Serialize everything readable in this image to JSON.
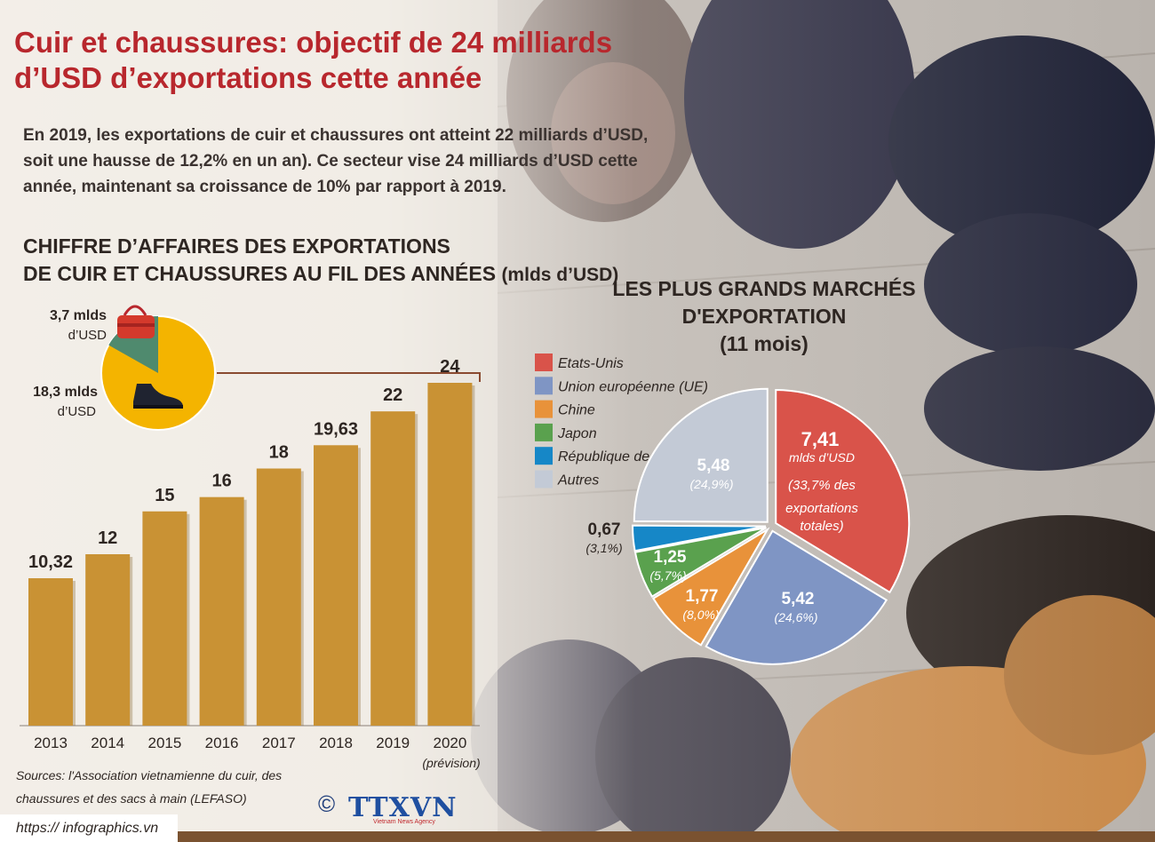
{
  "title": "Cuir et chaussures: objectif de 24 milliards d’USD d’exportations cette année",
  "intro": "En 2019, les exportations de cuir et chaussures ont atteint 22 milliards d’USD, soit  une hausse de 12,2% en un an). Ce secteur vise 24 milliards d’USD cette année, maintenant sa croissance de 10%  par rapport à 2019.",
  "bar_section": {
    "title_line1": "CHIFFRE D’AFFAIRES DES EXPORTATIONS",
    "title_line2": "DE CUIR ET CHAUSSURES AU FIL DES ANNÉES",
    "unit": "(mlds d’USD)",
    "forecast_note": "(prévision)"
  },
  "mini_pie": {
    "bags_value": "3,7 mlds",
    "bags_unit": "d’USD",
    "shoes_value": "18,3 mlds",
    "shoes_unit": "d’USD",
    "bags_color": "#4f8a6e",
    "shoes_color": "#f4b400"
  },
  "pie_section": {
    "title_line1": "LES PLUS GRANDS MARCHÉS",
    "title_line2": "D'EXPORTATION",
    "title_line3": "(11 mois)",
    "us_unit": "mlds d’USD",
    "us_note_line1": "(33,7% des",
    "us_note_line2": "exportations",
    "us_note_line3": "totales)"
  },
  "chart_data": [
    {
      "type": "bar",
      "categories": [
        "2013",
        "2014",
        "2015",
        "2016",
        "2017",
        "2018",
        "2019",
        "2020"
      ],
      "values": [
        10.32,
        12,
        15,
        16,
        18,
        19.63,
        22,
        24
      ],
      "value_labels": [
        "10,32",
        "12",
        "15",
        "16",
        "18",
        "19,63",
        "22",
        "24"
      ],
      "title": "CHIFFRE D’AFFAIRES DES EXPORTATIONS DE CUIR ET CHAUSSURES AU FIL DES ANNÉES (mlds d’USD)",
      "ylim": [
        0,
        24
      ],
      "color": "#c99234"
    },
    {
      "type": "pie",
      "slices": [
        {
          "name": "Etats-Unis",
          "value": 7.41,
          "label": "7,41",
          "percent": "(33,7% des",
          "color": "#d9534a"
        },
        {
          "name": "Union européenne (UE)",
          "value": 5.42,
          "label": "5,42",
          "percent": "(24,6%)",
          "color": "#7f95c4"
        },
        {
          "name": "Chine",
          "value": 1.77,
          "label": "1,77",
          "percent": "(8,0%)",
          "color": "#e8923a"
        },
        {
          "name": "Japon",
          "value": 1.25,
          "label": "1,25",
          "percent": "(5,7%)",
          "color": "#5aa14e"
        },
        {
          "name": "République de Corée",
          "value": 0.67,
          "label": "0,67",
          "percent": "(3,1%)",
          "color": "#1687c7"
        },
        {
          "name": "Autres",
          "value": 5.48,
          "label": "5,48",
          "percent": "(24,9%)",
          "color": "#c3cad6"
        }
      ],
      "title": "LES PLUS GRANDS MARCHÉS D'EXPORTATION (11 mois)"
    }
  ],
  "sources_line1": "Sources: l'Association vietnamienne du cuir, des",
  "sources_line2": "chaussures et des sacs à main (LEFASO)",
  "url": "https:// infographics.vn",
  "copyright": "©",
  "logo_text": "TTXVN",
  "logo_sub": "Vietnam News Agency"
}
